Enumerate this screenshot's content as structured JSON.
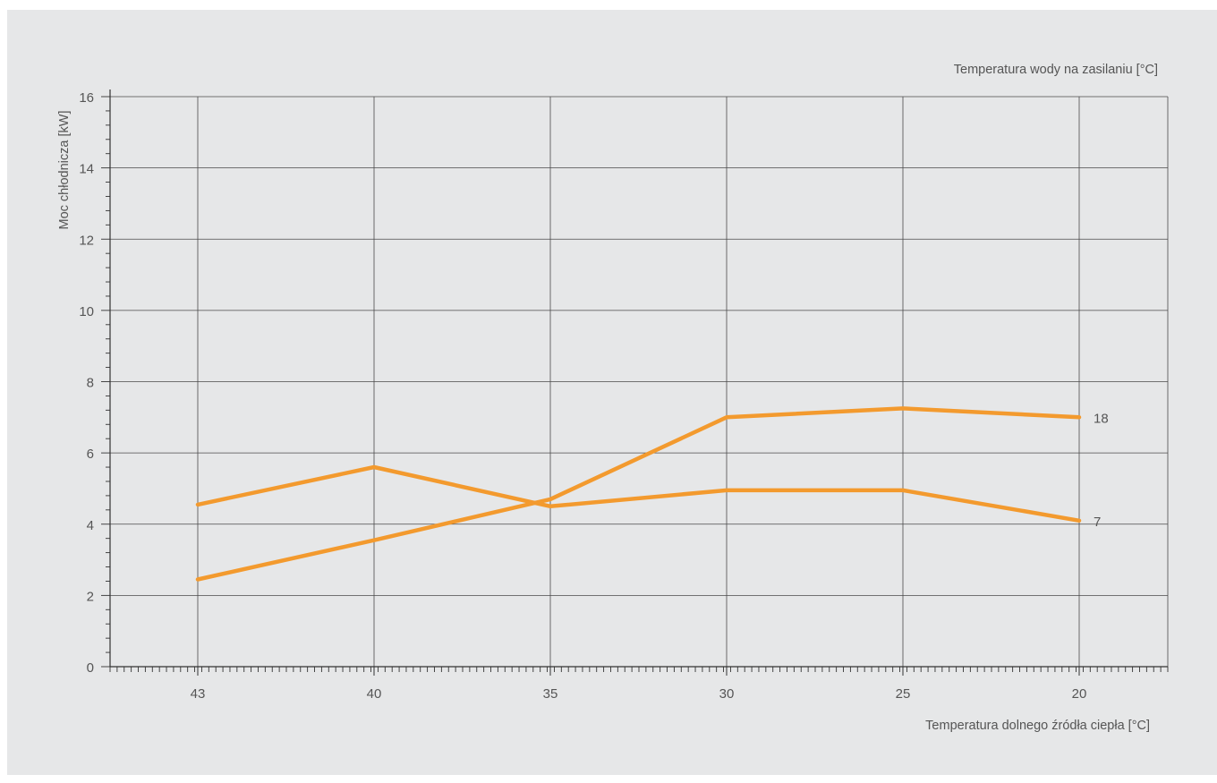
{
  "chart_data": {
    "type": "line",
    "legend_title": "Temperatura wody na zasilaniu [°C]",
    "xlabel": "Temperatura dolnego źródła ciepła [°C]",
    "ylabel": "Moc chłodnicza [kW]",
    "categories": [
      "43",
      "40",
      "35",
      "30",
      "25",
      "20"
    ],
    "ylim": [
      0,
      16
    ],
    "yticks": [
      "0",
      "2",
      "4",
      "6",
      "8",
      "10",
      "12",
      "14",
      "16"
    ],
    "grid": true,
    "series_label_placement": "right-end",
    "series": [
      {
        "name": "18",
        "values": [
          2.45,
          3.55,
          4.7,
          7.0,
          7.25,
          7.0
        ]
      },
      {
        "name": "7",
        "values": [
          4.55,
          5.6,
          4.5,
          4.95,
          4.95,
          4.1
        ]
      }
    ],
    "colors": {
      "line": "#f39a2e",
      "grid": "#4a4a4a",
      "background": "#e6e7e8",
      "text": "#555555"
    }
  }
}
